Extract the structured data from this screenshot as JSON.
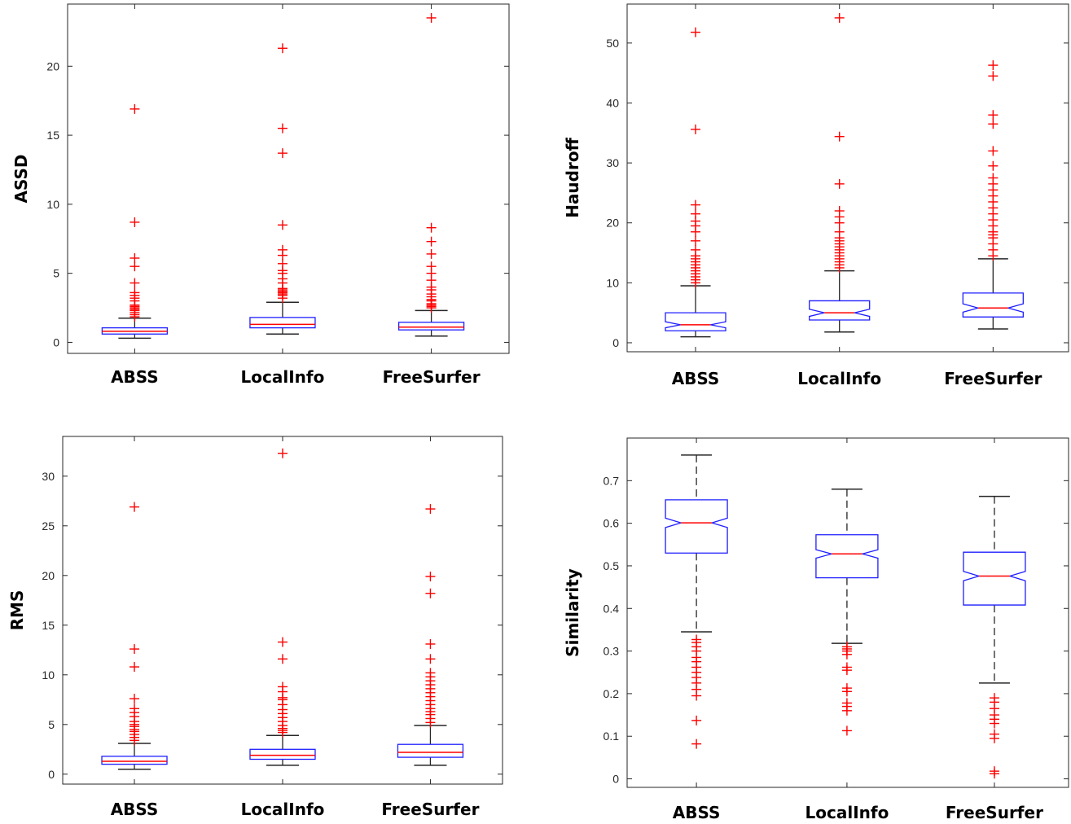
{
  "colors": {
    "box": "#1f1fff",
    "median": "#ff0000",
    "whisker": "#262626",
    "outlier": "#ff0000",
    "axis": "#262626"
  },
  "chart_data": [
    {
      "type": "box",
      "ylabel": "ASSD",
      "categories": [
        "ABSS",
        "LocalInfo",
        "FreeSurfer"
      ],
      "ylim": [
        -0.8,
        24.5
      ],
      "yticks": [
        0,
        5,
        10,
        15,
        20
      ],
      "notched": false,
      "boxes": [
        {
          "whisker_low": 0.3,
          "q1": 0.6,
          "median": 0.8,
          "q3": 1.05,
          "whisker_high": 1.75,
          "outliers": [
            1.85,
            2.0,
            2.15,
            2.3,
            2.4,
            2.5,
            2.6,
            2.7,
            3.0,
            3.2,
            3.4,
            3.6,
            4.3,
            5.5,
            6.1,
            8.7,
            16.9
          ]
        },
        {
          "whisker_low": 0.6,
          "q1": 1.05,
          "median": 1.3,
          "q3": 1.8,
          "whisker_high": 2.9,
          "outliers": [
            3.2,
            3.4,
            3.5,
            3.6,
            3.7,
            3.8,
            3.9,
            4.3,
            4.6,
            5.0,
            5.2,
            5.7,
            6.3,
            6.7,
            8.5,
            13.7,
            15.5,
            21.3
          ]
        },
        {
          "whisker_low": 0.45,
          "q1": 0.9,
          "median": 1.1,
          "q3": 1.45,
          "whisker_high": 2.3,
          "outliers": [
            2.5,
            2.6,
            2.7,
            2.8,
            3.0,
            3.1,
            3.3,
            3.5,
            3.8,
            4.0,
            4.5,
            5.0,
            5.5,
            6.4,
            7.3,
            8.3,
            23.5
          ]
        }
      ]
    },
    {
      "type": "box",
      "ylabel": "Haudroff",
      "categories": [
        "ABSS",
        "LocalInfo",
        "FreeSurfer"
      ],
      "ylim": [
        -1.5,
        56.5
      ],
      "yticks": [
        0,
        10,
        20,
        30,
        40,
        50
      ],
      "notched": true,
      "boxes": [
        {
          "whisker_low": 1.0,
          "q1": 2.0,
          "median": 3.0,
          "q3": 5.0,
          "whisker_high": 9.5,
          "notch": [
            2.5,
            3.5
          ],
          "outliers": [
            10.0,
            10.5,
            11.0,
            11.5,
            12.0,
            12.5,
            13.0,
            13.5,
            14.0,
            14.5,
            15.5,
            17.0,
            18.5,
            19.5,
            20.3,
            21.5,
            23.0,
            35.6,
            51.8
          ]
        },
        {
          "whisker_low": 1.8,
          "q1": 3.8,
          "median": 5.0,
          "q3": 7.0,
          "whisker_high": 12.0,
          "notch": [
            4.4,
            5.6
          ],
          "outliers": [
            12.5,
            13.0,
            13.5,
            14.0,
            14.5,
            15.0,
            15.5,
            16.0,
            16.5,
            17.0,
            17.5,
            18.5,
            20.0,
            21.0,
            22.0,
            26.5,
            34.4,
            54.2
          ]
        },
        {
          "whisker_low": 2.3,
          "q1": 4.3,
          "median": 5.8,
          "q3": 8.3,
          "whisker_high": 14.0,
          "notch": [
            5.1,
            6.5
          ],
          "outliers": [
            14.5,
            15.5,
            16.5,
            17.5,
            18.0,
            18.5,
            19.5,
            20.5,
            21.5,
            22.5,
            23.5,
            24.5,
            25.5,
            26.5,
            27.5,
            29.5,
            32.0,
            36.5,
            38.0,
            44.5,
            46.3
          ]
        }
      ]
    },
    {
      "type": "box",
      "ylabel": "RMS",
      "categories": [
        "ABSS",
        "LocalInfo",
        "FreeSurfer"
      ],
      "ylim": [
        -1.0,
        34.0
      ],
      "yticks": [
        0,
        5,
        10,
        15,
        20,
        25,
        30
      ],
      "notched": false,
      "boxes": [
        {
          "whisker_low": 0.5,
          "q1": 1.0,
          "median": 1.3,
          "q3": 1.8,
          "whisker_high": 3.1,
          "outliers": [
            3.4,
            3.7,
            4.0,
            4.3,
            4.5,
            4.8,
            5.0,
            5.3,
            5.8,
            6.2,
            6.6,
            7.6,
            10.8,
            12.6,
            26.9
          ]
        },
        {
          "whisker_low": 0.9,
          "q1": 1.5,
          "median": 1.9,
          "q3": 2.5,
          "whisker_high": 3.9,
          "outliers": [
            4.2,
            4.4,
            4.6,
            4.9,
            5.3,
            5.7,
            6.1,
            6.5,
            7.0,
            7.5,
            7.7,
            8.3,
            8.8,
            11.6,
            13.3,
            32.3
          ]
        },
        {
          "whisker_low": 0.9,
          "q1": 1.7,
          "median": 2.2,
          "q3": 3.0,
          "whisker_high": 4.9,
          "outliers": [
            5.2,
            5.6,
            6.0,
            6.3,
            6.6,
            7.0,
            7.4,
            7.8,
            8.2,
            8.6,
            9.0,
            9.4,
            9.8,
            10.2,
            11.6,
            13.1,
            18.2,
            19.9,
            26.7
          ]
        }
      ]
    },
    {
      "type": "box",
      "ylabel": "Similarity",
      "categories": [
        "ABSS",
        "LocalInfo",
        "FreeSurfer"
      ],
      "ylim": [
        -0.02,
        0.8
      ],
      "yticks": [
        0,
        0.1,
        0.2,
        0.3,
        0.4,
        0.5,
        0.6,
        0.7
      ],
      "notched": true,
      "whisker_dashed": true,
      "boxes": [
        {
          "whisker_low": 0.345,
          "q1": 0.53,
          "median": 0.601,
          "q3": 0.655,
          "whisker_high": 0.76,
          "notch": [
            0.59,
            0.612
          ],
          "outliers": [
            0.327,
            0.32,
            0.31,
            0.3,
            0.285,
            0.275,
            0.262,
            0.25,
            0.238,
            0.225,
            0.21,
            0.195,
            0.137,
            0.082
          ]
        },
        {
          "whisker_low": 0.318,
          "q1": 0.472,
          "median": 0.528,
          "q3": 0.573,
          "whisker_high": 0.68,
          "notch": [
            0.518,
            0.538
          ],
          "outliers": [
            0.31,
            0.305,
            0.3,
            0.292,
            0.262,
            0.255,
            0.213,
            0.205,
            0.178,
            0.17,
            0.16,
            0.113
          ]
        },
        {
          "whisker_low": 0.225,
          "q1": 0.408,
          "median": 0.476,
          "q3": 0.532,
          "whisker_high": 0.663,
          "notch": [
            0.465,
            0.487
          ],
          "outliers": [
            0.19,
            0.18,
            0.165,
            0.15,
            0.14,
            0.13,
            0.105,
            0.095,
            0.018,
            0.012
          ]
        }
      ]
    }
  ]
}
